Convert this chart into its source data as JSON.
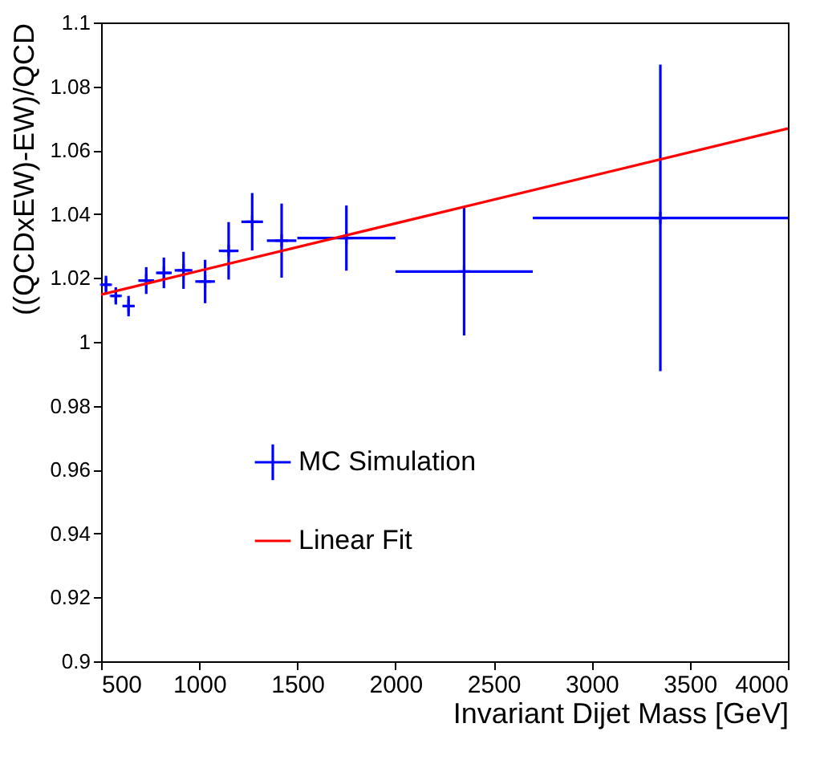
{
  "chart_data": {
    "type": "scatter",
    "xlabel": "Invariant Dijet Mass [GeV]",
    "ylabel": "((QCDxEW)-EW)/QCD",
    "xlim": [
      500,
      4000
    ],
    "xticks": [
      500,
      1000,
      1500,
      2000,
      2500,
      3000,
      3500,
      4000
    ],
    "ylim": [
      0.9,
      1.1
    ],
    "yticks": [
      0.9,
      0.92,
      0.94,
      0.96,
      0.98,
      1,
      1.02,
      1.04,
      1.06,
      1.08,
      1.1
    ],
    "grid": false,
    "legend": "left",
    "series": [
      {
        "name": "MC Simulation",
        "marker": "cross",
        "color": "#0000ff",
        "x": [
          525,
          575,
          640,
          730,
          820,
          920,
          1030,
          1150,
          1270,
          1420,
          1750,
          2350,
          3350
        ],
        "values": [
          1.0179,
          1.0144,
          1.0112,
          1.0192,
          1.0216,
          1.0224,
          1.0189,
          1.0285,
          1.0376,
          1.0317,
          1.0325,
          1.022,
          1.0388
        ],
        "errors": [
          0.0028,
          0.0027,
          0.0032,
          0.0042,
          0.0048,
          0.0058,
          0.0068,
          0.009,
          0.009,
          0.0116,
          0.0102,
          0.02,
          0.048
        ],
        "xerrors": [
          25,
          25,
          30,
          40,
          40,
          45,
          50,
          50,
          55,
          75,
          250,
          350,
          650
        ]
      },
      {
        "name": "Linear Fit",
        "type": "line",
        "color": "#ff0000",
        "x": [
          500,
          4000
        ],
        "values": [
          1.0148,
          1.0668
        ]
      }
    ]
  }
}
